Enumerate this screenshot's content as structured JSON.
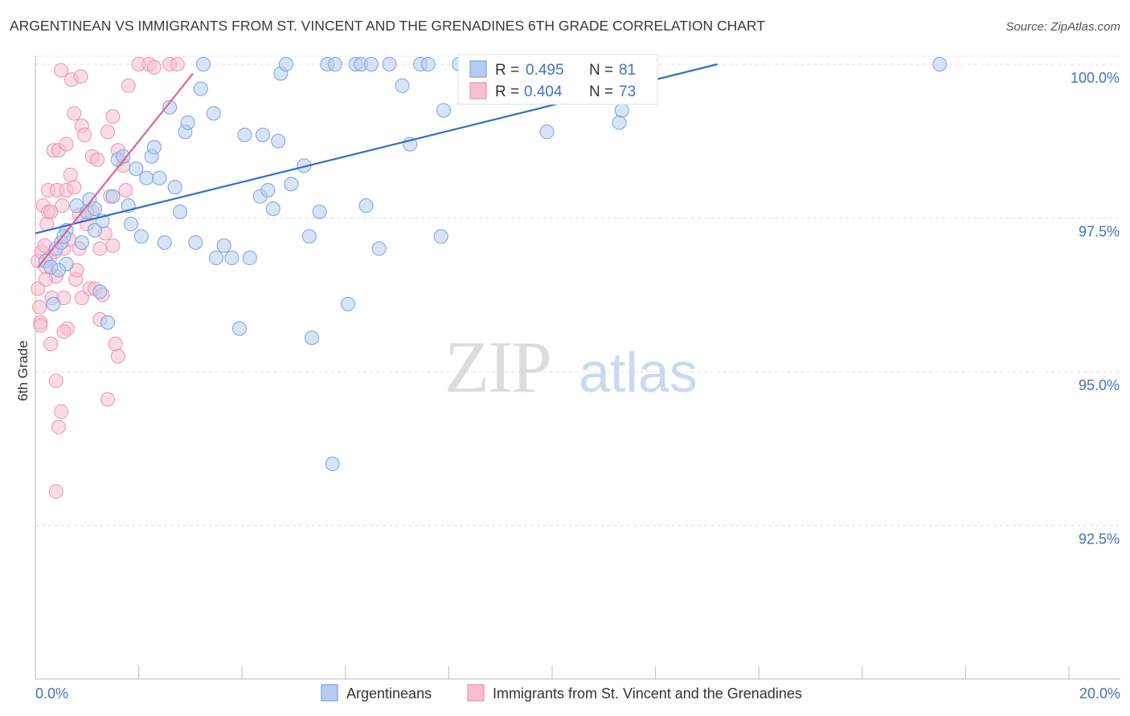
{
  "title": "ARGENTINEAN VS IMMIGRANTS FROM ST. VINCENT AND THE GRENADINES 6TH GRADE CORRELATION CHART",
  "source": "Source: ZipAtlas.com",
  "watermark": {
    "zip": "ZIP",
    "atlas": "atlas"
  },
  "legend": {
    "rows": [
      {
        "r_label": "R =",
        "r_value": "0.495",
        "n_label": "N =",
        "n_value": "81"
      },
      {
        "r_label": "R =",
        "r_value": "0.404",
        "n_label": "N =",
        "n_value": "73"
      }
    ]
  },
  "bottom_legend": [
    "Argentineans",
    "Immigrants from St. Vincent and the Grenadines"
  ],
  "colors": {
    "blue_fill": "#b7cdef",
    "blue_stroke": "#7ba2dc",
    "blue_line": "#2f6fcc",
    "pink_fill": "#f6c0d2",
    "pink_stroke": "#ec93b2",
    "pink_line": "#e46393",
    "grid": "#dddddd",
    "axis": "#bbbbbb",
    "tick_text": "#4472c4"
  },
  "chart_data": {
    "type": "scatter",
    "title": "ARGENTINEAN VS IMMIGRANTS FROM ST. VINCENT AND THE GRENADINES 6TH GRADE CORRELATION CHART",
    "xlabel": "",
    "ylabel": "6th Grade",
    "xlim": [
      0,
      20
    ],
    "ylim": [
      90.2,
      100.25
    ],
    "x_tick_labels": [
      "0.0%",
      "20.0%"
    ],
    "y_ticks": [
      92.5,
      95.0,
      97.5,
      100.0
    ],
    "y_tick_labels": [
      "92.5%",
      "95.0%",
      "97.5%",
      "100.0%"
    ],
    "grid": true,
    "series": [
      {
        "name": "Argentineans",
        "color": "#b7cdef",
        "r": 0.495,
        "n": 81,
        "trend": {
          "x": [
            0,
            13.2
          ],
          "y": [
            97.25,
            100.0
          ]
        },
        "points": [
          [
            0.2,
            96.8
          ],
          [
            0.3,
            96.7
          ],
          [
            0.35,
            96.1
          ],
          [
            0.4,
            97.0
          ],
          [
            0.5,
            97.1
          ],
          [
            0.6,
            97.3
          ],
          [
            0.6,
            96.75
          ],
          [
            0.8,
            97.7
          ],
          [
            0.9,
            97.1
          ],
          [
            1.0,
            97.6
          ],
          [
            1.05,
            97.8
          ],
          [
            1.15,
            97.65
          ],
          [
            1.25,
            96.3
          ],
          [
            1.3,
            97.45
          ],
          [
            1.4,
            95.8
          ],
          [
            1.5,
            97.85
          ],
          [
            1.6,
            98.45
          ],
          [
            1.7,
            98.5
          ],
          [
            1.8,
            97.7
          ],
          [
            1.85,
            97.4
          ],
          [
            1.95,
            98.3
          ],
          [
            2.05,
            97.2
          ],
          [
            2.15,
            98.15
          ],
          [
            2.25,
            98.5
          ],
          [
            2.3,
            98.65
          ],
          [
            2.4,
            98.15
          ],
          [
            2.5,
            97.1
          ],
          [
            2.6,
            99.3
          ],
          [
            2.7,
            98.0
          ],
          [
            2.8,
            97.6
          ],
          [
            2.9,
            98.9
          ],
          [
            2.95,
            99.05
          ],
          [
            3.1,
            97.1
          ],
          [
            3.2,
            99.6
          ],
          [
            3.25,
            100.0
          ],
          [
            3.45,
            99.2
          ],
          [
            3.5,
            96.85
          ],
          [
            3.65,
            97.05
          ],
          [
            3.8,
            96.85
          ],
          [
            3.95,
            95.7
          ],
          [
            4.05,
            98.85
          ],
          [
            4.15,
            96.85
          ],
          [
            4.35,
            97.85
          ],
          [
            4.4,
            98.85
          ],
          [
            4.5,
            97.95
          ],
          [
            4.6,
            97.65
          ],
          [
            4.7,
            98.75
          ],
          [
            4.75,
            99.85
          ],
          [
            4.85,
            100.0
          ],
          [
            4.95,
            98.05
          ],
          [
            5.2,
            98.35
          ],
          [
            5.3,
            97.2
          ],
          [
            5.35,
            95.55
          ],
          [
            5.5,
            97.6
          ],
          [
            5.65,
            100.0
          ],
          [
            5.8,
            100.0
          ],
          [
            5.75,
            93.5
          ],
          [
            6.05,
            96.1
          ],
          [
            6.2,
            100.0
          ],
          [
            6.3,
            100.0
          ],
          [
            6.4,
            97.7
          ],
          [
            6.5,
            100.0
          ],
          [
            6.65,
            97.0
          ],
          [
            6.85,
            100.0
          ],
          [
            7.1,
            99.65
          ],
          [
            7.25,
            98.7
          ],
          [
            7.45,
            100.0
          ],
          [
            7.6,
            100.0
          ],
          [
            7.85,
            97.2
          ],
          [
            7.9,
            99.25
          ],
          [
            8.2,
            100.0
          ],
          [
            8.9,
            100.0
          ],
          [
            9.15,
            100.0
          ],
          [
            9.5,
            100.0
          ],
          [
            9.9,
            98.9
          ],
          [
            11.3,
            99.05
          ],
          [
            11.35,
            99.25
          ],
          [
            17.5,
            100.0
          ],
          [
            0.55,
            97.2
          ],
          [
            1.15,
            97.3
          ],
          [
            0.45,
            96.65
          ]
        ]
      },
      {
        "name": "Immigrants from St. Vincent and the Grenadines",
        "color": "#f6c0d2",
        "r": 0.404,
        "n": 73,
        "trend": {
          "x": [
            0.05,
            3.05
          ],
          "y": [
            96.7,
            99.85
          ]
        },
        "points": [
          [
            0.05,
            96.8
          ],
          [
            0.05,
            96.35
          ],
          [
            0.08,
            96.05
          ],
          [
            0.1,
            95.8
          ],
          [
            0.1,
            95.75
          ],
          [
            0.12,
            96.95
          ],
          [
            0.15,
            97.7
          ],
          [
            0.18,
            97.05
          ],
          [
            0.2,
            96.7
          ],
          [
            0.22,
            97.4
          ],
          [
            0.25,
            97.95
          ],
          [
            0.25,
            97.6
          ],
          [
            0.28,
            96.85
          ],
          [
            0.3,
            97.6
          ],
          [
            0.32,
            96.2
          ],
          [
            0.35,
            98.6
          ],
          [
            0.38,
            96.95
          ],
          [
            0.4,
            96.55
          ],
          [
            0.42,
            97.95
          ],
          [
            0.45,
            98.6
          ],
          [
            0.5,
            99.9
          ],
          [
            0.52,
            97.7
          ],
          [
            0.55,
            97.0
          ],
          [
            0.55,
            96.2
          ],
          [
            0.6,
            98.7
          ],
          [
            0.6,
            97.95
          ],
          [
            0.62,
            95.7
          ],
          [
            0.65,
            97.15
          ],
          [
            0.68,
            98.2
          ],
          [
            0.7,
            99.75
          ],
          [
            0.75,
            99.2
          ],
          [
            0.75,
            98.0
          ],
          [
            0.78,
            96.5
          ],
          [
            0.8,
            96.65
          ],
          [
            0.85,
            97.55
          ],
          [
            0.85,
            97.0
          ],
          [
            0.88,
            99.8
          ],
          [
            0.9,
            99.0
          ],
          [
            0.9,
            96.2
          ],
          [
            0.95,
            98.85
          ],
          [
            1.0,
            97.4
          ],
          [
            1.05,
            96.35
          ],
          [
            1.1,
            98.5
          ],
          [
            1.1,
            97.6
          ],
          [
            1.15,
            96.35
          ],
          [
            1.2,
            98.45
          ],
          [
            1.25,
            97.0
          ],
          [
            1.25,
            95.85
          ],
          [
            1.3,
            96.25
          ],
          [
            1.35,
            97.25
          ],
          [
            1.4,
            98.9
          ],
          [
            1.45,
            97.85
          ],
          [
            1.5,
            97.05
          ],
          [
            1.55,
            95.45
          ],
          [
            1.6,
            98.6
          ],
          [
            1.7,
            98.35
          ],
          [
            1.75,
            97.95
          ],
          [
            1.8,
            99.65
          ],
          [
            2.0,
            100.0
          ],
          [
            2.2,
            100.0
          ],
          [
            2.3,
            99.95
          ],
          [
            2.6,
            100.0
          ],
          [
            2.75,
            100.0
          ],
          [
            1.6,
            95.25
          ],
          [
            1.4,
            94.55
          ],
          [
            0.4,
            94.85
          ],
          [
            0.45,
            94.1
          ],
          [
            0.5,
            94.35
          ],
          [
            0.4,
            93.05
          ],
          [
            0.3,
            95.45
          ],
          [
            0.55,
            95.65
          ],
          [
            0.2,
            96.5
          ],
          [
            1.5,
            99.15
          ]
        ]
      }
    ]
  }
}
